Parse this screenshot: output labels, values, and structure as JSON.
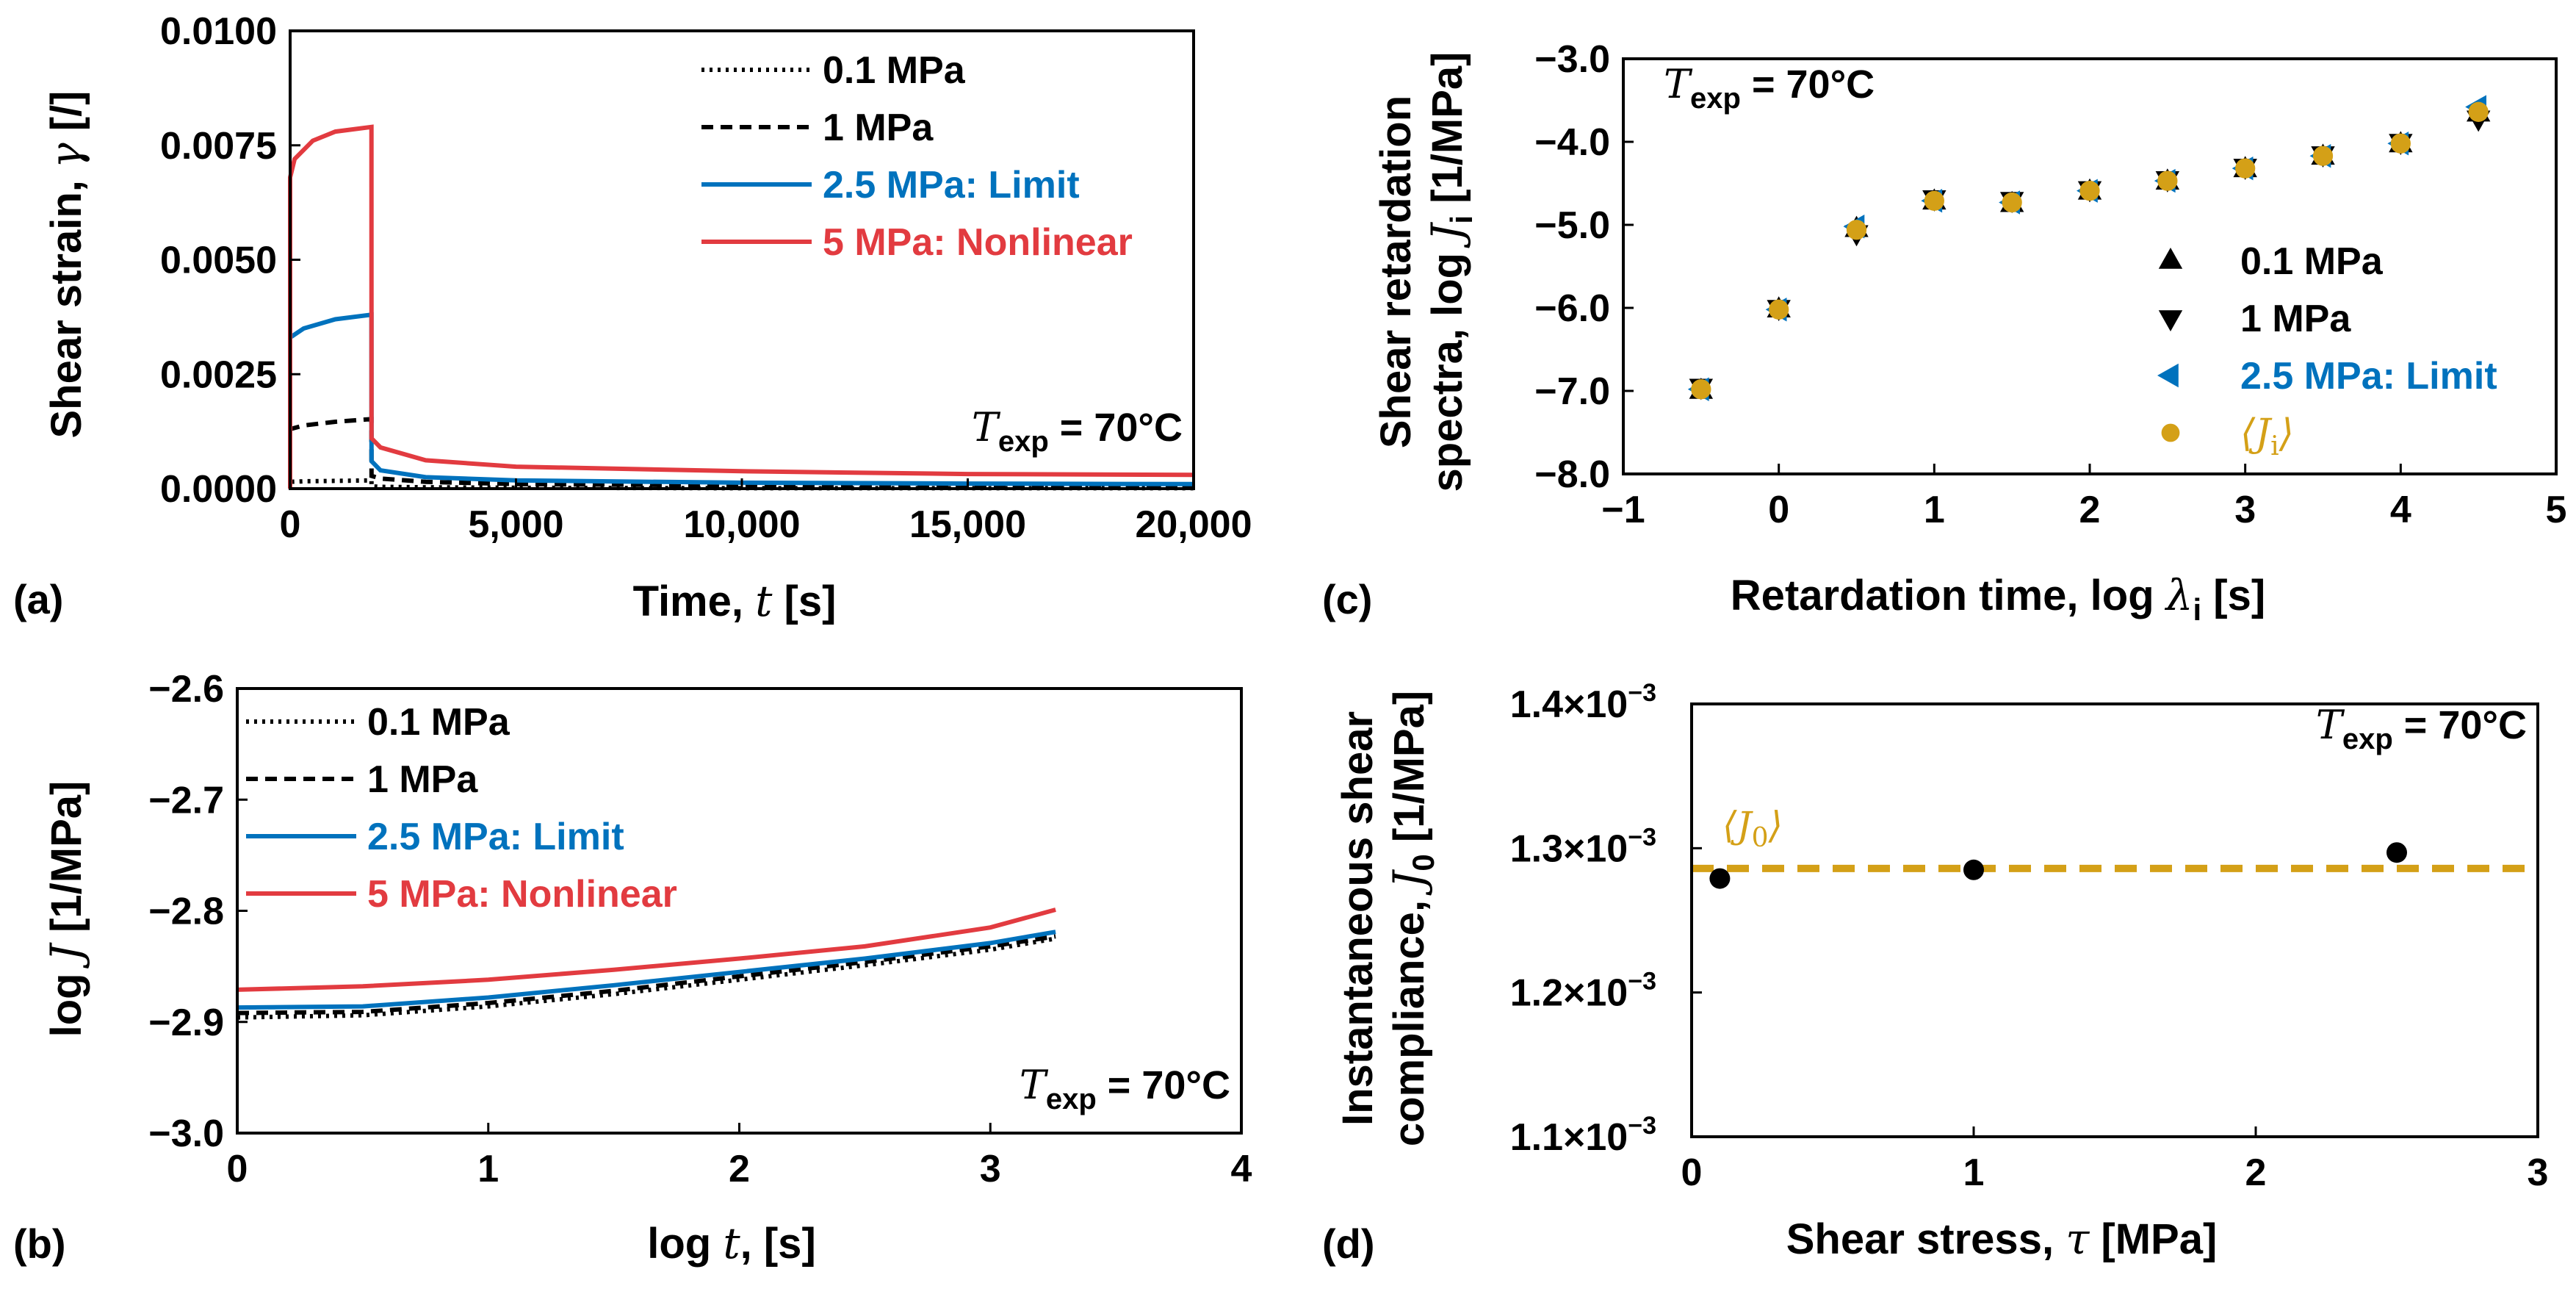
{
  "chart_data": [
    {
      "id": "a",
      "type": "line",
      "panel_label": "(a)",
      "xlabel": "Time, ",
      "xlabel_sym": "t",
      "xlabel_unit": " [s]",
      "ylabel": "Shear strain, ",
      "ylabel_sym": "γ",
      "ylabel_unit": " [/]",
      "xlim": [
        0,
        20000
      ],
      "ylim": [
        0,
        0.01
      ],
      "xticks": [
        0,
        5000,
        10000,
        15000,
        20000
      ],
      "xtick_labels": [
        "0",
        "5,000",
        "10,000",
        "15,000",
        "20,000"
      ],
      "yticks": [
        0,
        0.0025,
        0.005,
        0.0075,
        0.01
      ],
      "ytick_labels": [
        "0.0000",
        "0.0025",
        "0.0050",
        "0.0075",
        "0.0100"
      ],
      "annotation": {
        "T": "T",
        "sub": "exp",
        "text": " = 70°C"
      },
      "legend_position": "top-right",
      "series": [
        {
          "name": "0.1 MPa",
          "color": "#000000",
          "dash": "dotted",
          "x": [
            0,
            0.1,
            300,
            1000,
            1800,
            1801,
            2000,
            3000,
            5000,
            10000,
            15000,
            20000
          ],
          "y": [
            0,
            0.00015,
            0.00016,
            0.00017,
            0.00018,
            5e-05,
            4e-05,
            3e-05,
            2e-05,
            1e-05,
            1e-05,
            1e-05
          ]
        },
        {
          "name": "1 MPa",
          "color": "#000000",
          "dash": "dashed",
          "x": [
            0,
            0.1,
            300,
            1000,
            1800,
            1801,
            2000,
            3000,
            5000,
            10000,
            15000,
            20000
          ],
          "y": [
            0,
            0.0013,
            0.00138,
            0.00146,
            0.00152,
            0.00028,
            0.00022,
            0.00015,
            0.0001,
            7e-05,
            6e-05,
            5e-05
          ]
        },
        {
          "name": "2.5 MPa: Limit",
          "color": "#0072BD",
          "dash": "solid",
          "x": [
            0,
            0.1,
            300,
            1000,
            1800,
            1801,
            2000,
            3000,
            5000,
            10000,
            15000,
            20000
          ],
          "y": [
            0,
            0.0033,
            0.0035,
            0.0037,
            0.0038,
            0.0006,
            0.0004,
            0.00025,
            0.00018,
            0.00013,
            0.00011,
            0.0001
          ]
        },
        {
          "name": "5 MPa: Nonlinear",
          "color": "#E23B40",
          "dash": "solid",
          "x": [
            0,
            0.1,
            100,
            500,
            1000,
            1800,
            1801,
            2000,
            3000,
            5000,
            10000,
            15000,
            20000
          ],
          "y": [
            0,
            0.0068,
            0.0072,
            0.0076,
            0.0078,
            0.0079,
            0.0011,
            0.0009,
            0.00062,
            0.00048,
            0.00038,
            0.00032,
            0.0003
          ]
        }
      ]
    },
    {
      "id": "b",
      "type": "line",
      "panel_label": "(b)",
      "xlabel": "log ",
      "xlabel_sym": "t",
      "xlabel_unit": ", [s]",
      "ylabel": "log ",
      "ylabel_sym": "J",
      "ylabel_unit": " [1/MPa]",
      "xlim": [
        0,
        4
      ],
      "ylim": [
        -3.0,
        -2.6
      ],
      "xticks": [
        0,
        1,
        2,
        3,
        4
      ],
      "xtick_labels": [
        "0",
        "1",
        "2",
        "3",
        "4"
      ],
      "yticks": [
        -3.0,
        -2.9,
        -2.8,
        -2.7,
        -2.6
      ],
      "ytick_labels": [
        "−3.0",
        "−2.9",
        "−2.8",
        "−2.7",
        "−2.6"
      ],
      "annotation": {
        "T": "T",
        "sub": "exp",
        "text": " = 70°C"
      },
      "legend_position": "top-left",
      "series": [
        {
          "name": "0.1 MPa",
          "color": "#000000",
          "dash": "dotted",
          "x": [
            0,
            0.5,
            1,
            1.5,
            2,
            2.5,
            3,
            3.26
          ],
          "y": [
            -2.896,
            -2.894,
            -2.886,
            -2.875,
            -2.862,
            -2.849,
            -2.835,
            -2.825
          ]
        },
        {
          "name": "1 MPa",
          "color": "#000000",
          "dash": "dashed",
          "x": [
            0,
            0.5,
            1,
            1.5,
            2,
            2.5,
            3,
            3.26
          ],
          "y": [
            -2.892,
            -2.891,
            -2.883,
            -2.872,
            -2.859,
            -2.846,
            -2.832,
            -2.823
          ]
        },
        {
          "name": "2.5 MPa: Limit",
          "color": "#0072BD",
          "dash": "solid",
          "x": [
            0,
            0.5,
            1,
            1.5,
            2,
            2.5,
            3,
            3.26
          ],
          "y": [
            -2.887,
            -2.886,
            -2.878,
            -2.867,
            -2.855,
            -2.843,
            -2.829,
            -2.819
          ]
        },
        {
          "name": "5 MPa: Nonlinear",
          "color": "#E23B40",
          "dash": "solid",
          "x": [
            0,
            0.5,
            1,
            1.5,
            2,
            2.5,
            3,
            3.26
          ],
          "y": [
            -2.871,
            -2.868,
            -2.862,
            -2.853,
            -2.843,
            -2.832,
            -2.815,
            -2.799
          ]
        }
      ]
    },
    {
      "id": "c",
      "type": "scatter",
      "panel_label": "(c)",
      "xlabel": "Retardation time,  log ",
      "xlabel_sym": "λ",
      "xlabel_sub": "i",
      "xlabel_unit": " [s]",
      "ylabel_line1": "Shear retardation",
      "ylabel_line2": "spectra, log ",
      "ylabel_sym": "J",
      "ylabel_sub": "i",
      "ylabel_unit": " [1/MPa]",
      "xlim": [
        -1,
        5
      ],
      "ylim": [
        -8.0,
        -3.0
      ],
      "xticks": [
        -1,
        0,
        1,
        2,
        3,
        4,
        5
      ],
      "xtick_labels": [
        "−1",
        "0",
        "1",
        "2",
        "3",
        "4",
        "5"
      ],
      "yticks": [
        -8,
        -7,
        -6,
        -5,
        -4,
        -3
      ],
      "ytick_labels": [
        "−8.0",
        "−7.0",
        "−6.0",
        "−5.0",
        "−4.0",
        "−3.0"
      ],
      "annotation": {
        "T": "T",
        "sub": "exp",
        "text": " = 70°C"
      },
      "legend_position": "bottom-right",
      "x": [
        -0.5,
        0,
        0.5,
        1,
        1.5,
        2,
        2.5,
        3,
        3.5,
        4,
        4.5
      ],
      "series": [
        {
          "name": "0.1 MPa",
          "marker": "triangle-up",
          "color": "#000000",
          "y": [
            -7.0,
            -6.02,
            -5.05,
            -4.72,
            -4.75,
            -4.6,
            -4.48,
            -4.33,
            -4.18,
            -4.03,
            -3.66
          ]
        },
        {
          "name": "1 MPa",
          "marker": "triangle-down",
          "color": "#000000",
          "y": [
            -6.95,
            -6.0,
            -5.1,
            -4.68,
            -4.7,
            -4.57,
            -4.45,
            -4.3,
            -4.15,
            -4.0,
            -3.72
          ]
        },
        {
          "name": "2.5 MPa: Limit",
          "marker": "triangle-left",
          "color": "#0072BD",
          "y": [
            -6.98,
            -6.02,
            -5.02,
            -4.71,
            -4.73,
            -4.59,
            -4.47,
            -4.32,
            -4.17,
            -4.02,
            -3.58
          ]
        },
        {
          "name": "⟨J",
          "name_sub": "i",
          "name_end": "⟩",
          "marker": "circle",
          "color": "#D4A017",
          "y": [
            -6.98,
            -6.02,
            -5.06,
            -4.71,
            -4.73,
            -4.59,
            -4.47,
            -4.32,
            -4.17,
            -4.02,
            -3.64
          ]
        }
      ]
    },
    {
      "id": "d",
      "type": "scatter",
      "panel_label": "(d)",
      "xlabel": "Shear stress, ",
      "xlabel_sym": "τ",
      "xlabel_unit": " [MPa]",
      "ylabel_line1": "Instantaneous shear",
      "ylabel_line2": "compliance, ",
      "ylabel_sym": "J",
      "ylabel_sub": "0",
      "ylabel_unit": " [1/MPa]",
      "xlim": [
        0,
        3
      ],
      "ylim": [
        0.0011,
        0.0014
      ],
      "xticks": [
        0,
        1,
        2,
        3
      ],
      "xtick_labels": [
        "0",
        "1",
        "2",
        "3"
      ],
      "yticks": [
        0.0011,
        0.0012,
        0.0013,
        0.0014
      ],
      "ytick_labels": [
        {
          "base": "1.1×10",
          "exp": "−3"
        },
        {
          "base": "1.2×10",
          "exp": "−3"
        },
        {
          "base": "1.3×10",
          "exp": "−3"
        },
        {
          "base": "1.4×10",
          "exp": "−3"
        }
      ],
      "annotation": {
        "T": "T",
        "sub": "exp",
        "text": " = 70°C"
      },
      "points": {
        "x": [
          0.1,
          1.0,
          2.5
        ],
        "y": [
          0.001279,
          0.001285,
          0.001297
        ],
        "color": "#000000"
      },
      "mean_line": {
        "y": 0.001286,
        "color": "#D4A017",
        "label": "⟨J",
        "label_sub": "0",
        "label_end": "⟩"
      }
    }
  ]
}
